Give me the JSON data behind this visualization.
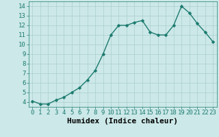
{
  "x": [
    0,
    1,
    2,
    3,
    4,
    5,
    6,
    7,
    8,
    9,
    10,
    11,
    12,
    13,
    14,
    15,
    16,
    17,
    18,
    19,
    20,
    21,
    22,
    23
  ],
  "y": [
    4.1,
    3.8,
    3.8,
    4.2,
    4.5,
    5.0,
    5.5,
    6.3,
    7.3,
    9.0,
    11.0,
    12.0,
    12.0,
    12.3,
    12.5,
    11.3,
    11.0,
    11.0,
    12.0,
    14.0,
    13.3,
    12.2,
    11.3,
    10.3
  ],
  "line_color": "#1a7a6e",
  "marker_color": "#1a7a6e",
  "bg_color": "#cce8e8",
  "grid_color": "#aacece",
  "xlabel": "Humidex (Indice chaleur)",
  "ylim": [
    3.5,
    14.5
  ],
  "xlim": [
    -0.5,
    23.5
  ],
  "yticks": [
    4,
    5,
    6,
    7,
    8,
    9,
    10,
    11,
    12,
    13,
    14
  ],
  "xticks": [
    0,
    1,
    2,
    3,
    4,
    5,
    6,
    7,
    8,
    9,
    10,
    11,
    12,
    13,
    14,
    15,
    16,
    17,
    18,
    19,
    20,
    21,
    22,
    23
  ],
  "tick_label_fontsize": 6.5,
  "xlabel_fontsize": 8,
  "marker_size": 2.5,
  "line_width": 1.0
}
